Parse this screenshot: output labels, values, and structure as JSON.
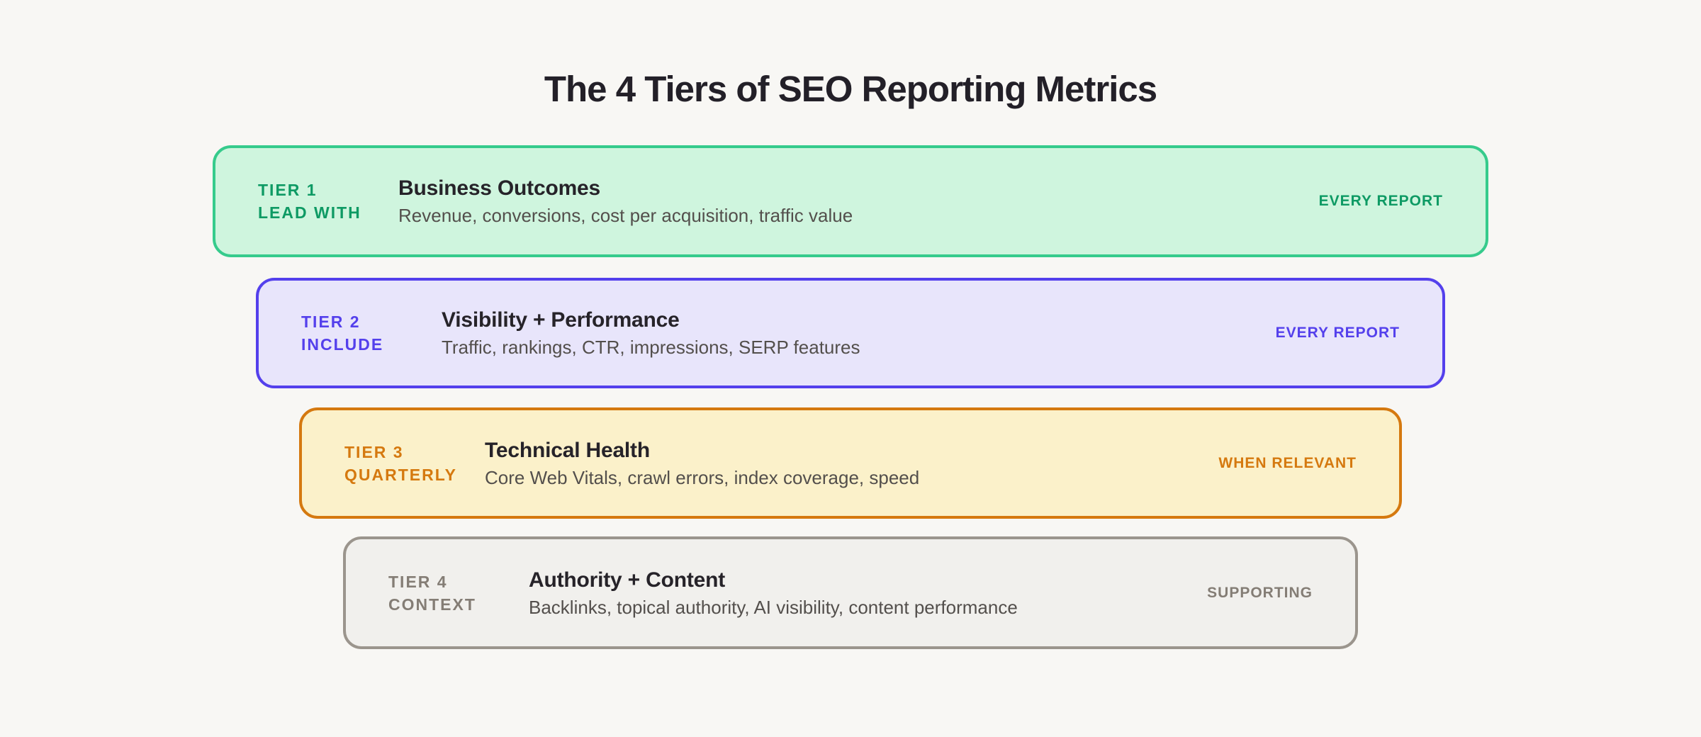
{
  "page": {
    "background": "#F8F7F4",
    "title": "The 4 Tiers of SEO Reporting Metrics"
  },
  "tiers": [
    {
      "tier_label": "TIER 1",
      "action_label": "LEAD WITH",
      "heading": "Business Outcomes",
      "description": "Revenue, conversions, cost per acquisition, traffic value",
      "frequency": "EVERY REPORT",
      "colors": {
        "bg": "#CFF5DE",
        "border": "#36CB8C",
        "accent": "#0E9A64"
      }
    },
    {
      "tier_label": "TIER 2",
      "action_label": "INCLUDE",
      "heading": "Visibility + Performance",
      "description": "Traffic, rankings, CTR, impressions, SERP features",
      "frequency": "EVERY REPORT",
      "colors": {
        "bg": "#E8E5FB",
        "border": "#5440EC",
        "accent": "#5440EC"
      }
    },
    {
      "tier_label": "TIER 3",
      "action_label": "QUARTERLY",
      "heading": "Technical Health",
      "description": "Core Web Vitals, crawl errors, index coverage, speed",
      "frequency": "WHEN RELEVANT",
      "colors": {
        "bg": "#FBF1CA",
        "border": "#D5790F",
        "accent": "#D5790F"
      }
    },
    {
      "tier_label": "TIER 4",
      "action_label": "CONTEXT",
      "heading": "Authority + Content",
      "description": "Backlinks, topical authority, AI visibility, content performance",
      "frequency": "SUPPORTING",
      "colors": {
        "bg": "#F1F0ED",
        "border": "#9B958D",
        "accent": "#847D75"
      }
    }
  ]
}
